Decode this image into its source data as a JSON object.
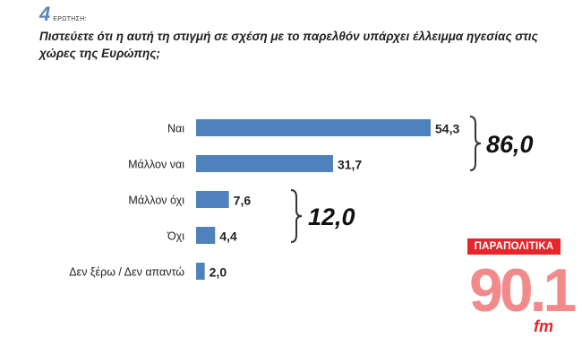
{
  "header": {
    "question_number": "4",
    "question_label": "ΕΡΩΤΗΣΗ:",
    "question_text": "Πιστεύετε ότι η αυτή τη στιγμή σε σχέση με το παρελθόν υπάρχει έλλειμμα ηγεσίας στις χώρες της Ευρώπης;"
  },
  "chart_data": {
    "type": "bar",
    "orientation": "horizontal",
    "categories": [
      "Ναι",
      "Μάλλον ναι",
      "Μάλλον όχι",
      "Όχι",
      "Δεν ξέρω / Δεν απαντώ"
    ],
    "values": [
      54.3,
      31.7,
      7.6,
      4.4,
      2.0
    ],
    "value_labels": [
      "54,3",
      "31,7",
      "7,6",
      "4,4",
      "2,0"
    ],
    "bar_color": "#4f81bd",
    "groups": [
      {
        "label": "86,0",
        "categories": [
          "Ναι",
          "Μάλλον ναι"
        ]
      },
      {
        "label": "12,0",
        "categories": [
          "Μάλλον όχι",
          "Όχι"
        ]
      }
    ],
    "title": "",
    "xlabel": "",
    "ylabel": "",
    "xlim": [
      0,
      60
    ],
    "grid": false,
    "legend": "none"
  },
  "logo": {
    "top_text": "ΠΑΡΑΠΟΛΙΤΙΚΑ",
    "number": "90.1",
    "suffix": "fm",
    "color": "#e6262b"
  }
}
